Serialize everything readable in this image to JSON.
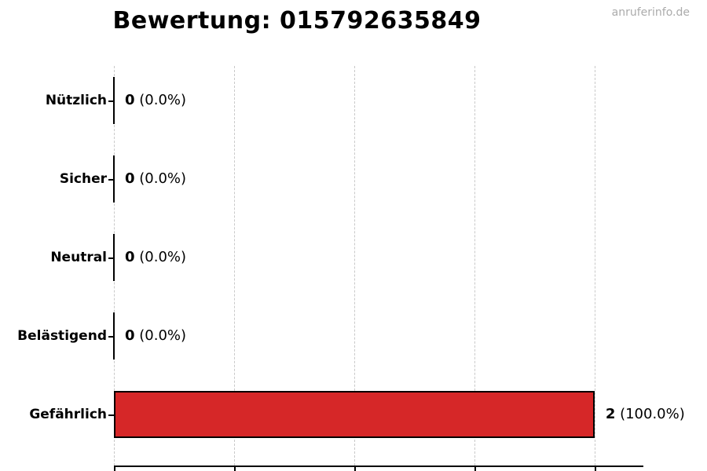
{
  "title": "Bewertung: 015792635849",
  "watermark": "anruferinfo.de",
  "chart_data": {
    "type": "bar",
    "orientation": "horizontal",
    "title": "Bewertung: 015792635849",
    "categories": [
      "Nützlich",
      "Sicher",
      "Neutral",
      "Belästigend",
      "Gefährlich"
    ],
    "values": [
      0,
      0,
      0,
      0,
      2
    ],
    "percent_labels": [
      "0.0%",
      "0.0%",
      "0.0%",
      "0.0%",
      "100.0%"
    ],
    "value_labels": [
      "0 (0.0%)",
      "0 (0.0%)",
      "0 (0.0%)",
      "0 (0.0%)",
      "2 (100.0%)"
    ],
    "xlim": [
      0,
      2.2
    ],
    "x_ticks": [
      0,
      0.5,
      1.0,
      1.5,
      2.0
    ],
    "grid": "vertical-dashed",
    "bar_color": "#d62728",
    "bar_edge_color": "#000000",
    "grid_color": "#c9c9c9",
    "axis_color": "#000000",
    "watermark_color": "#ababab"
  }
}
